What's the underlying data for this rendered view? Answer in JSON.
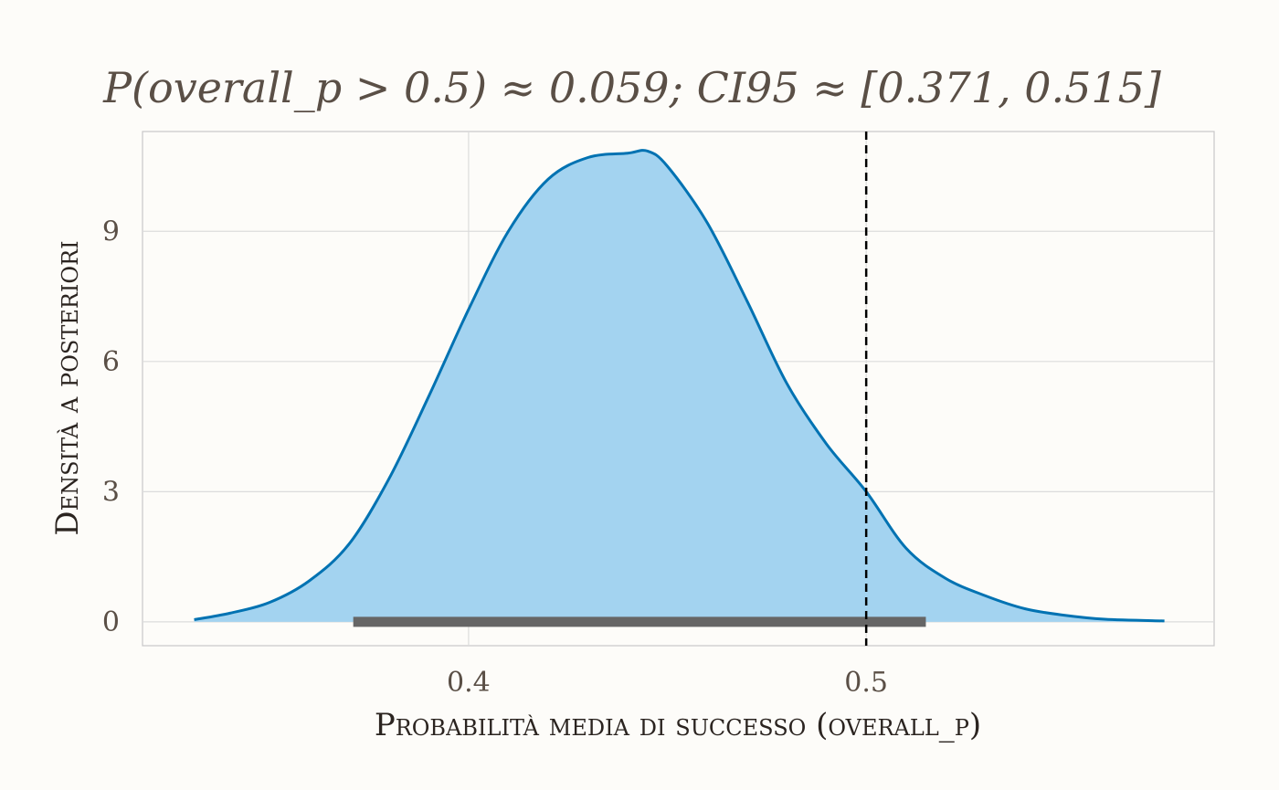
{
  "chart_data": {
    "type": "area",
    "title": "P(overall_p > 0.5) ≈ 0.059; CI95 ≈ [0.371, 0.515]",
    "xlabel": "Probabilità media di successo (overall_p)",
    "ylabel": "Densità a posteriori",
    "xlim": [
      0.318,
      0.5875
    ],
    "ylim": [
      -0.55,
      11.3
    ],
    "x_ticks": [
      0.4,
      0.5
    ],
    "x_tick_labels": [
      "0.4",
      "0.5"
    ],
    "y_ticks": [
      0,
      3,
      6,
      9
    ],
    "y_tick_labels": [
      "0",
      "3",
      "6",
      "9"
    ],
    "grid": true,
    "series": [
      {
        "x": [
          0.331,
          0.34,
          0.35,
          0.36,
          0.37,
          0.38,
          0.39,
          0.4,
          0.41,
          0.42,
          0.43,
          0.44,
          0.445,
          0.45,
          0.46,
          0.47,
          0.48,
          0.49,
          0.5,
          0.51,
          0.52,
          0.53,
          0.54,
          0.55,
          0.56,
          0.575
        ],
        "y": [
          0.05,
          0.2,
          0.45,
          0.95,
          1.8,
          3.3,
          5.2,
          7.2,
          9.0,
          10.2,
          10.7,
          10.8,
          10.85,
          10.5,
          9.2,
          7.4,
          5.5,
          4.1,
          3.0,
          1.7,
          1.0,
          0.6,
          0.3,
          0.15,
          0.06,
          0.02
        ],
        "color": "#0072b2",
        "fill": "#a3d3f0"
      }
    ],
    "reference_line": {
      "x": 0.5,
      "style": "dashed",
      "color": "#000000"
    },
    "interval": {
      "low": 0.371,
      "high": 0.515,
      "y": 0,
      "color": "#666666"
    }
  }
}
